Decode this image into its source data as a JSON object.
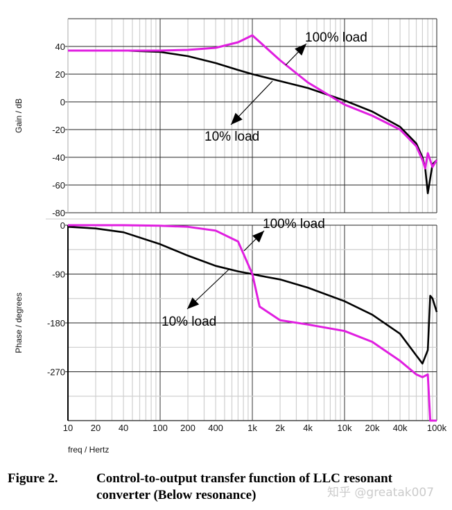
{
  "chart_data": [
    {
      "type": "line",
      "title": "Gain",
      "xlabel": "freq / Hertz",
      "ylabel": "Gain / dB",
      "xscale": "log",
      "xlim": [
        10,
        100000
      ],
      "ylim": [
        -80,
        60
      ],
      "x_tick_labels": [
        "10",
        "20",
        "40",
        "100",
        "200",
        "400",
        "1k",
        "2k",
        "4k",
        "10k",
        "20k",
        "40k",
        "100k"
      ],
      "y_ticks": [
        40,
        20,
        0,
        -20,
        -40,
        -60,
        -80
      ],
      "grid": true,
      "x": [
        10,
        20,
        40,
        100,
        200,
        400,
        700,
        1000,
        2000,
        4000,
        10000,
        20000,
        40000,
        60000,
        70000,
        75000,
        80000,
        90000,
        100000
      ],
      "series": [
        {
          "name": "10% load",
          "color": "#000000",
          "values": [
            37,
            37,
            37,
            36,
            33,
            28,
            23,
            20,
            15,
            10,
            1,
            -7,
            -18,
            -30,
            -40,
            -48,
            -66,
            -45,
            -42
          ]
        },
        {
          "name": "100% load",
          "color": "#e01ee0",
          "values": [
            37,
            37,
            37,
            37,
            37.5,
            39,
            43,
            48,
            30,
            14,
            -2,
            -10,
            -20,
            -32,
            -42,
            -48,
            -37,
            -47,
            -42
          ]
        }
      ],
      "annotations": [
        {
          "text": "100% load",
          "x_approx": 2200,
          "y_approx": 46
        },
        {
          "text": "10% load",
          "x_approx": 400,
          "y_approx": -24
        }
      ]
    },
    {
      "type": "line",
      "title": "Phase",
      "xlabel": "freq / Hertz",
      "ylabel": "Phase / degrees",
      "xscale": "log",
      "xlim": [
        10,
        100000
      ],
      "ylim": [
        -360,
        0
      ],
      "x_tick_labels": [
        "10",
        "20",
        "40",
        "100",
        "200",
        "400",
        "1k",
        "2k",
        "4k",
        "10k",
        "20k",
        "40k",
        "100k"
      ],
      "y_ticks": [
        0,
        -90,
        -180,
        -270
      ],
      "grid": true,
      "x": [
        10,
        20,
        40,
        100,
        200,
        400,
        700,
        1000,
        1200,
        2000,
        4000,
        10000,
        20000,
        40000,
        60000,
        70000,
        80000,
        85000,
        90000,
        100000
      ],
      "series": [
        {
          "name": "10% load",
          "color": "#000000",
          "values": [
            -3,
            -6,
            -13,
            -35,
            -56,
            -75,
            -85,
            -90,
            -93,
            -100,
            -115,
            -140,
            -165,
            -200,
            -240,
            -255,
            -230,
            -130,
            -135,
            -160
          ]
        },
        {
          "name": "100% load",
          "color": "#e01ee0",
          "values": [
            0,
            0,
            0,
            -1,
            -3,
            -10,
            -30,
            -90,
            -150,
            -175,
            -183,
            -195,
            -215,
            -250,
            -275,
            -280,
            -275,
            -360,
            -360,
            -360
          ]
        }
      ],
      "annotations": [
        {
          "text": "100% load",
          "x_approx": 1100,
          "y_approx": -5
        },
        {
          "text": "10% load",
          "x_approx": 100,
          "y_approx": -175
        }
      ]
    }
  ],
  "axes": {
    "gain_ylabel": "Gain / dB",
    "phase_ylabel": "Phase / degrees",
    "xlabel": "freq / Hertz",
    "x_ticks": [
      "10",
      "20",
      "40",
      "100",
      "200",
      "400",
      "1k",
      "2k",
      "4k",
      "10k",
      "20k",
      "40k",
      "100k"
    ],
    "gain_ticks": [
      "40",
      "20",
      "0",
      "-20",
      "-40",
      "-60",
      "-80"
    ],
    "phase_ticks": [
      "0",
      "-90",
      "-180",
      "-270"
    ]
  },
  "annotations": {
    "gain_100": "100% load",
    "gain_10": "10% load",
    "phase_100": "100% load",
    "phase_10": "10% load"
  },
  "colors": {
    "load_10": "#000000",
    "load_100": "#e01ee0"
  },
  "caption": {
    "label": "Figure 2.",
    "text_line1": "Control-to-output transfer function of LLC resonant",
    "text_line2": "converter (Below resonance)"
  },
  "watermark": "知乎 @greatak007"
}
